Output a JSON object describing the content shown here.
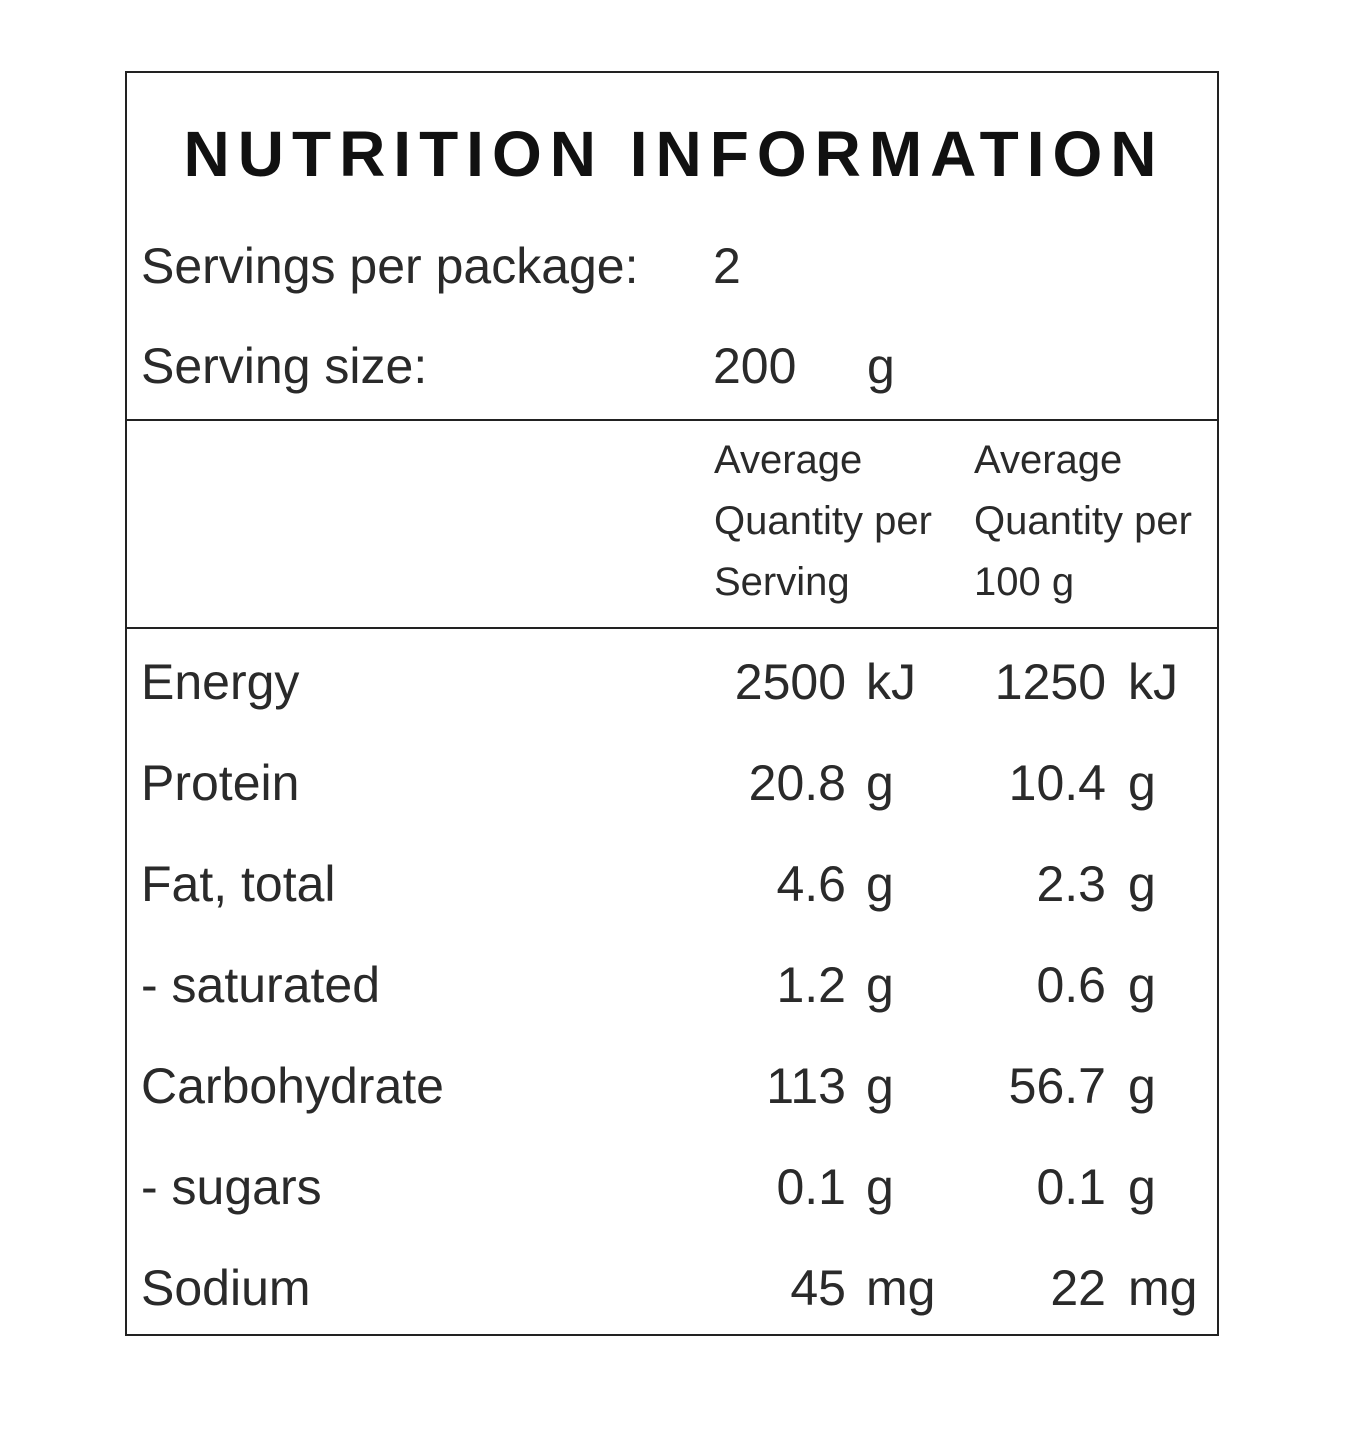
{
  "panel": {
    "title": "NUTRITION INFORMATION",
    "servings_per_package": {
      "label": "Servings per package:",
      "value": "2"
    },
    "serving_size": {
      "label": "Serving size:",
      "value": "200",
      "unit": "g"
    }
  },
  "columns": [
    {
      "lines": [
        "Average",
        "Quantity per",
        "Serving"
      ]
    },
    {
      "lines": [
        "Average",
        "Quantity per",
        "100 g"
      ]
    }
  ],
  "nutrients": [
    {
      "name": "Energy",
      "per_serving": "2500",
      "per_serving_unit": "kJ",
      "per_100g": "1250",
      "per_100g_unit": "kJ"
    },
    {
      "name": "Protein",
      "per_serving": "20.8",
      "per_serving_unit": "g",
      "per_100g": "10.4",
      "per_100g_unit": "g"
    },
    {
      "name": "Fat, total",
      "per_serving": "4.6",
      "per_serving_unit": "g",
      "per_100g": "2.3",
      "per_100g_unit": "g"
    },
    {
      "name": "- saturated",
      "per_serving": "1.2",
      "per_serving_unit": "g",
      "per_100g": "0.6",
      "per_100g_unit": "g"
    },
    {
      "name": "Carbohydrate",
      "per_serving": "113",
      "per_serving_unit": "g",
      "per_100g": "56.7",
      "per_100g_unit": "g"
    },
    {
      "name": "- sugars",
      "per_serving": "0.1",
      "per_serving_unit": "g",
      "per_100g": "0.1",
      "per_100g_unit": "g"
    },
    {
      "name": "Sodium",
      "per_serving": "45",
      "per_serving_unit": "mg",
      "per_100g": "22",
      "per_100g_unit": "mg"
    }
  ],
  "colors": {
    "border": "#222222",
    "text": "#2a2a2a",
    "title": "#111111",
    "background": "#ffffff"
  }
}
